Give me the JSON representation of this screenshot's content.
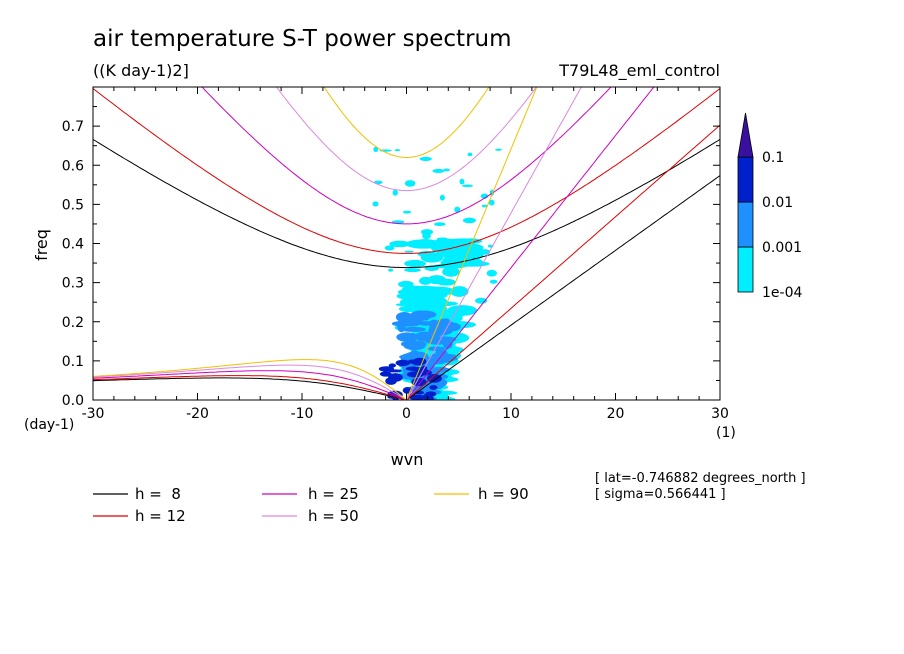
{
  "chart_data": {
    "type": "line",
    "title": "air temperature S-T power spectrum",
    "subtitle": "((K day-1)2]",
    "run_label": "T79L48_eml_control",
    "xlabel": "wvn",
    "ylabel": "freq",
    "x_unit_label": "(1)",
    "y_unit_label": "(day-1)",
    "xlim": [
      -30,
      30
    ],
    "ylim": [
      0,
      0.8
    ],
    "x_ticks": [
      -30,
      -20,
      -10,
      0,
      10,
      20,
      30
    ],
    "x_tick_labels": [
      "-30",
      "-20",
      "-10",
      "0",
      "10",
      "20",
      "30"
    ],
    "y_ticks": [
      0,
      0.1,
      0.2,
      0.3,
      0.4,
      0.5,
      0.6,
      0.7
    ],
    "y_tick_labels": [
      "0.0",
      "0.1",
      "0.2",
      "0.3",
      "0.4",
      "0.5",
      "0.6",
      "0.7"
    ],
    "colorbar": {
      "levels": [
        "1e-04",
        "0.001",
        "0.01",
        "0.1"
      ],
      "colors": [
        "#00eeff",
        "#1e90ff",
        "#0020cc",
        "#3a10a0"
      ]
    },
    "dispersion_curves": [
      {
        "label": "h =  8",
        "h": 8,
        "color": "#000000"
      },
      {
        "label": "h = 12",
        "h": 12,
        "color": "#e00000"
      },
      {
        "label": "h = 25",
        "h": 25,
        "color": "#d000c0"
      },
      {
        "label": "h = 50",
        "h": 50,
        "color": "#dd88dd"
      },
      {
        "label": "h = 90",
        "h": 90,
        "color": "#f0c000"
      }
    ],
    "info_lines": [
      "[ lat=-0.746882 degrees_north ]",
      "[ sigma=0.566441 ]"
    ]
  }
}
